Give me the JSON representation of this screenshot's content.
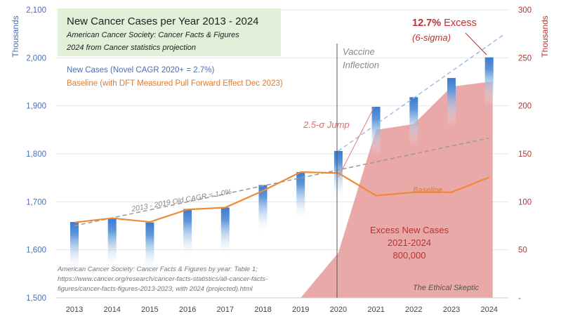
{
  "chart_data": {
    "type": "bar",
    "title": "New Cancer Cases per Year 2013 - 2024",
    "subtitle_lines": [
      "American Cancer Society: Cancer Facts & Figures",
      "2024 from Cancer statistics  projection"
    ],
    "legend": {
      "new_cases": "New Cases (Novel CAGR 2020+ = 2.7%)",
      "baseline": "Baseline (with DFT Measured Pull Forward Effect Dec 2023)"
    },
    "categories": [
      "2013",
      "2014",
      "2015",
      "2016",
      "2017",
      "2018",
      "2019",
      "2020",
      "2021",
      "2022",
      "2023",
      "2024"
    ],
    "series": [
      {
        "name": "New Cases",
        "axis": "left",
        "type": "bar",
        "color": "#3f7fcf",
        "values": [
          1658,
          1665,
          1657,
          1685,
          1688,
          1735,
          1762,
          1806,
          1898,
          1918,
          1958,
          2001
        ]
      },
      {
        "name": "Baseline",
        "axis": "left",
        "type": "line",
        "color": "#ee8a35",
        "values": [
          1657,
          1666,
          1658,
          1684,
          1688,
          1723,
          1762,
          1760,
          1713,
          1720,
          1720,
          1751
        ]
      },
      {
        "name": "Excess New Cases",
        "axis": "right",
        "type": "area",
        "color": "#e59a9a",
        "values": [
          null,
          null,
          null,
          null,
          null,
          null,
          0,
          47,
          175,
          181,
          220,
          225
        ]
      }
    ],
    "trendlines": [
      {
        "label": "2013 - 2019 Old CAGR = 1.0%",
        "from": [
          "2013",
          1650
        ],
        "to": [
          "2024",
          1833
        ],
        "color": "#999999"
      },
      {
        "label": "Novel CAGR 2020+",
        "from": [
          "2020",
          1806
        ],
        "to": [
          "2024",
          2030
        ],
        "color": "#9dbbe6"
      }
    ],
    "left_axis": {
      "label": "Thousands",
      "range": [
        1500,
        2100
      ],
      "ticks": [
        "1,500",
        "1,600",
        "1,700",
        "1,800",
        "1,900",
        "2,000",
        "2,100"
      ]
    },
    "right_axis": {
      "label": "Thousands",
      "range": [
        0,
        300
      ],
      "ticks": [
        "-",
        "50",
        "100",
        "150",
        "200",
        "250",
        "300"
      ]
    },
    "annotations": {
      "vaccine": [
        "Vaccine",
        "Inflection"
      ],
      "jump": "2.5-σ Jump",
      "excess_pct": "12.7%",
      "excess_word": " Excess",
      "sigma": "(6-sigma)",
      "baseline_label": "Baseline",
      "old_cagr": "2013 - 2019 Old CAGR = 1.0%",
      "excess_lines": [
        "Excess New Cases",
        "2021-2024",
        "800,000"
      ],
      "source_lines": [
        "American Cancer Society: Cancer Facts & Figures by year: Table  1;",
        "https://www.cancer.org/research/cancer-facts-statistics/all-cancer-facts-",
        "figures/cancer-facts-figures-2013-2023, with 2024 (projected).html"
      ],
      "watermark": "The Ethical Skeptic"
    },
    "grid": true
  }
}
